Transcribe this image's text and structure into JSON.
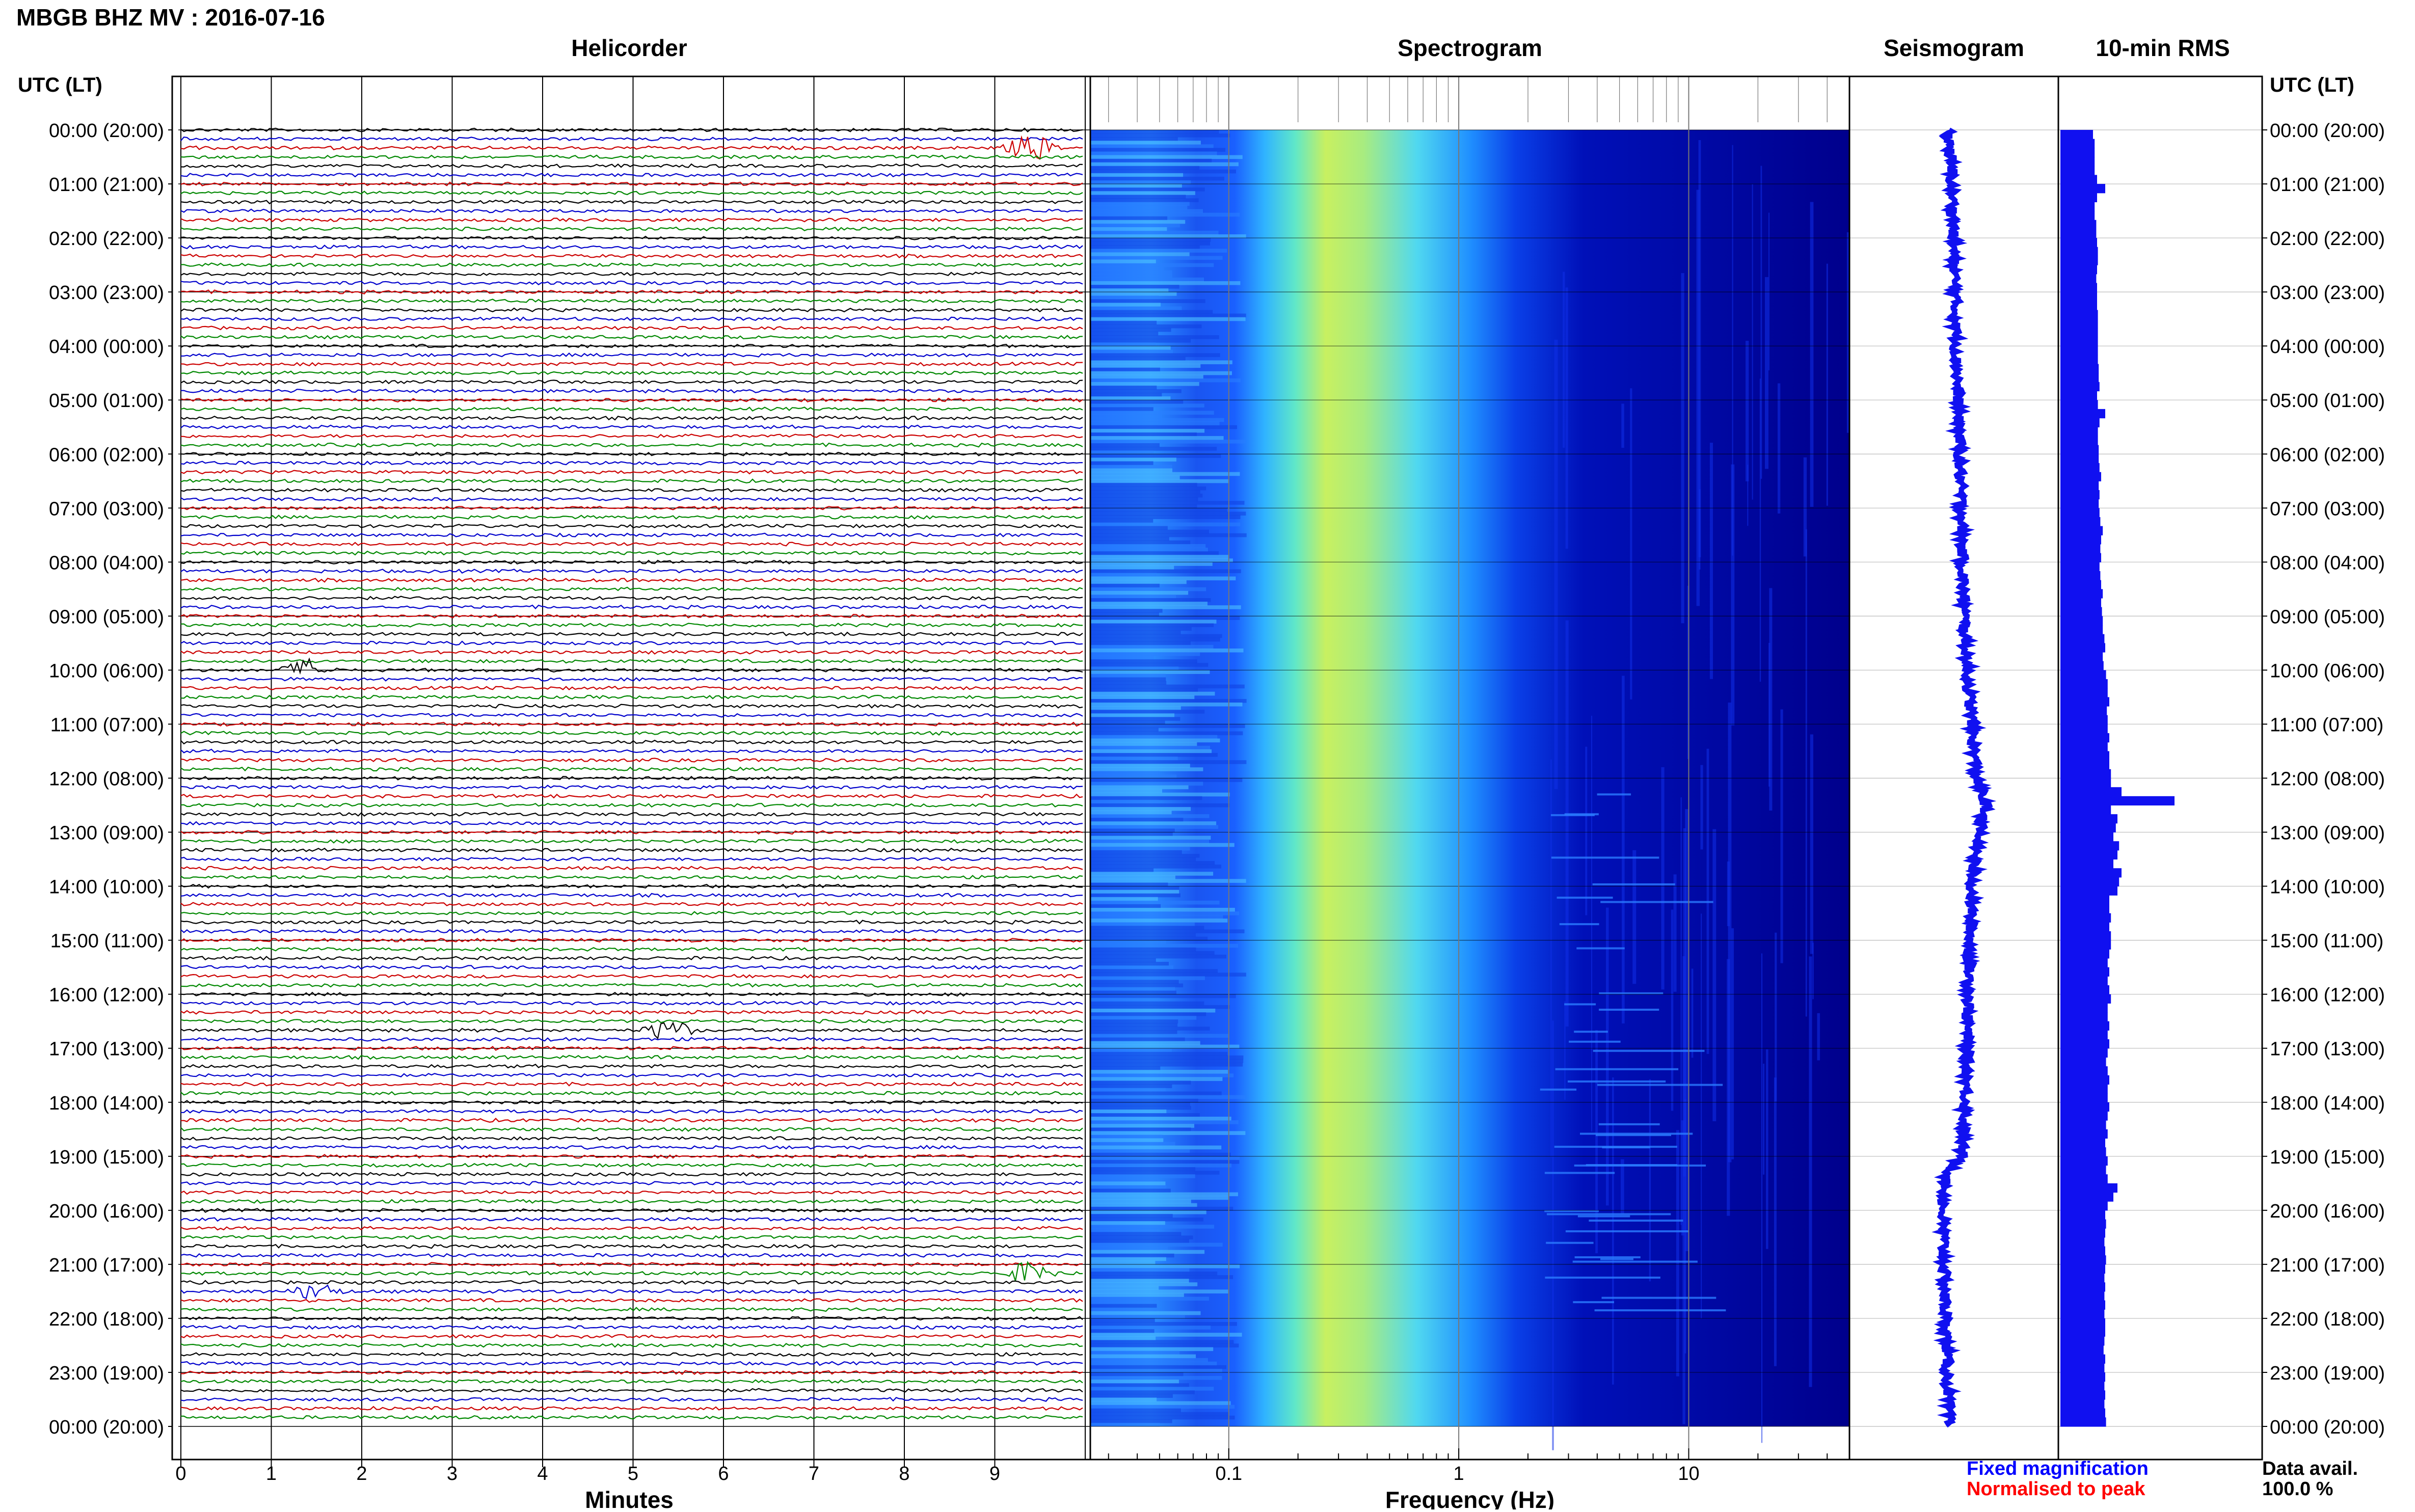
{
  "title": "MBGB BHZ MV : 2016-07-16",
  "panels": {
    "helicorder": "Helicorder",
    "spectrogram": "Spectrogram",
    "seismogram": "Seismogram",
    "rms": "10-min RMS"
  },
  "time_axis": {
    "header": "UTC (LT)",
    "labels": [
      "00:00 (20:00)",
      "01:00 (21:00)",
      "02:00 (22:00)",
      "03:00 (23:00)",
      "04:00 (00:00)",
      "05:00 (01:00)",
      "06:00 (02:00)",
      "07:00 (03:00)",
      "08:00 (04:00)",
      "09:00 (05:00)",
      "10:00 (06:00)",
      "11:00 (07:00)",
      "12:00 (08:00)",
      "13:00 (09:00)",
      "14:00 (10:00)",
      "15:00 (11:00)",
      "16:00 (12:00)",
      "17:00 (13:00)",
      "18:00 (14:00)",
      "19:00 (15:00)",
      "20:00 (16:00)",
      "21:00 (17:00)",
      "22:00 (18:00)",
      "23:00 (19:00)",
      "00:00 (20:00)"
    ]
  },
  "x_axes": {
    "minutes_label": "Minutes",
    "minutes_ticks": [
      "0",
      "1",
      "2",
      "3",
      "4",
      "5",
      "6",
      "7",
      "8",
      "9"
    ],
    "frequency_label": "Frequency (Hz)",
    "frequency_ticks": [
      "0.1",
      "1",
      "10"
    ]
  },
  "legend": {
    "fixed": "Fixed magnification",
    "normalised": "Normalised to peak",
    "fixed_color": "#0000ff",
    "normalised_color": "#ff0000"
  },
  "availability": {
    "label": "Data avail.",
    "value": "100.0 %"
  },
  "colors": {
    "trace_cycle": [
      "#000000",
      "#0000cc",
      "#cc0000",
      "#008800"
    ],
    "seismogram": "#1010f0",
    "rms": "#1010f0",
    "grid": "#000000"
  },
  "chart_data": [
    {
      "type": "line",
      "title": "Helicorder",
      "xlabel": "Minutes",
      "xlim": [
        0,
        10
      ],
      "ylim": [
        0,
        24
      ],
      "rows": 144,
      "row_minutes": 10,
      "events": [
        {
          "hour": 0.33,
          "minute": 9.4,
          "amplitude": 2.0,
          "color": "#008800"
        },
        {
          "hour": 10.0,
          "minute": 1.4,
          "amplitude": 1.5,
          "color": "#cc0000"
        },
        {
          "hour": 16.6,
          "minute": 5.4,
          "amplitude": 1.6,
          "color": "#000000"
        },
        {
          "hour": 21.1,
          "minute": 9.4,
          "amplitude": 1.8,
          "color": "#008800"
        },
        {
          "hour": 21.5,
          "minute": 1.5,
          "amplitude": 1.3,
          "color": "#cc0000"
        }
      ]
    },
    {
      "type": "heatmap",
      "title": "Spectrogram",
      "xlabel": "Frequency (Hz)",
      "x_scale": "log",
      "xlim": [
        0.025,
        50
      ],
      "ylim": [
        0,
        24
      ],
      "peak_band_hz": [
        0.25,
        1.0
      ],
      "colormap": [
        "#00007f",
        "#0000ff",
        "#0080ff",
        "#00ffff",
        "#80ff80",
        "#ffff00"
      ]
    },
    {
      "type": "line",
      "title": "Seismogram",
      "ylim": [
        0,
        24
      ],
      "hours": [
        0,
        1,
        2,
        3,
        4,
        5,
        6,
        7,
        8,
        9,
        10,
        11,
        12,
        12.5,
        13,
        13.5,
        14,
        15,
        16,
        17,
        18,
        19,
        19.4,
        20,
        21,
        22,
        23,
        24
      ],
      "offset": [
        0.0,
        0.05,
        0.08,
        0.1,
        0.12,
        0.15,
        0.18,
        0.2,
        0.22,
        0.25,
        0.3,
        0.38,
        0.45,
        0.6,
        0.5,
        0.42,
        0.38,
        0.35,
        0.32,
        0.3,
        0.28,
        0.2,
        -0.05,
        -0.1,
        -0.08,
        -0.05,
        -0.03,
        0.0
      ]
    },
    {
      "type": "bar",
      "title": "10-min RMS",
      "ylim": [
        0,
        24
      ],
      "bin_minutes": 10,
      "values": [
        40,
        42,
        42,
        42,
        42,
        45,
        55,
        45,
        42,
        42,
        44,
        44,
        45,
        46,
        46,
        45,
        44,
        45,
        45,
        45,
        46,
        46,
        46,
        46,
        46,
        46,
        47,
        47,
        48,
        45,
        46,
        55,
        48,
        46,
        46,
        47,
        47,
        48,
        50,
        47,
        48,
        47,
        48,
        49,
        52,
        50,
        49,
        50,
        48,
        49,
        50,
        52,
        50,
        51,
        52,
        52,
        54,
        55,
        52,
        53,
        56,
        58,
        58,
        60,
        57,
        58,
        58,
        60,
        58,
        60,
        60,
        62,
        62,
        75,
        140,
        62,
        70,
        68,
        65,
        72,
        70,
        65,
        75,
        72,
        70,
        60,
        60,
        62,
        60,
        62,
        62,
        60,
        58,
        60,
        58,
        60,
        62,
        58,
        58,
        60,
        58,
        60,
        58,
        56,
        58,
        60,
        58,
        58,
        60,
        58,
        56,
        58,
        55,
        56,
        58,
        56,
        58,
        70,
        65,
        58,
        55,
        56,
        55,
        54,
        55,
        56,
        55,
        54,
        55,
        54,
        55,
        54,
        55,
        55,
        54,
        53,
        55,
        54,
        55,
        54,
        55,
        54,
        55,
        56
      ]
    }
  ]
}
